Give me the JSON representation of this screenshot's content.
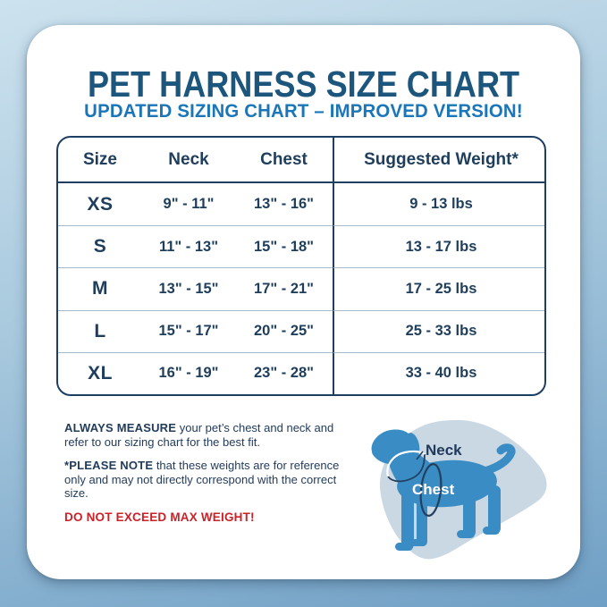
{
  "page": {
    "title": "PET HARNESS SIZE CHART",
    "subtitle": "UPDATED SIZING CHART – IMPROVED VERSION!"
  },
  "colors": {
    "title_blue": "#1d567d",
    "subtitle_blue": "#1a76b8",
    "table_ink": "#1e3e5c",
    "note_ink": "#223c5c",
    "warning_red": "#cc2127",
    "dog_blue": "#3a8cc4",
    "blob_blue": "#c9d8e3",
    "background_top": "#cde2ee",
    "background_bottom": "#6f9fc5"
  },
  "table": {
    "headers": [
      "Size",
      "Neck",
      "Chest",
      "Suggested Weight*"
    ],
    "rows": [
      {
        "size": "XS",
        "neck": "9\" - 11\"",
        "chest": "13\" - 16\"",
        "weight": "9 - 13 lbs"
      },
      {
        "size": "S",
        "neck": "11\" - 13\"",
        "chest": "15\" - 18\"",
        "weight": "13 - 17 lbs"
      },
      {
        "size": "M",
        "neck": "13\" - 15\"",
        "chest": "17\" - 21\"",
        "weight": "17 - 25 lbs"
      },
      {
        "size": "L",
        "neck": "15\" - 17\"",
        "chest": "20\" - 25\"",
        "weight": "25 - 33 lbs"
      },
      {
        "size": "XL",
        "neck": "16\" - 19\"",
        "chest": "23\" - 28\"",
        "weight": "33 - 40 lbs"
      }
    ]
  },
  "notes": {
    "measure_bold": "ALWAYS MEASURE",
    "measure_rest": " your pet’s chest and neck and refer to our sizing chart for the best fit.",
    "reference_bold": "*PLEASE NOTE",
    "reference_rest": " that these weights are for reference only and may not directly correspond with the correct size.",
    "warning": "DO NOT EXCEED MAX WEIGHT!"
  },
  "diagram": {
    "neck_label": "Neck",
    "chest_label": "Chest"
  }
}
